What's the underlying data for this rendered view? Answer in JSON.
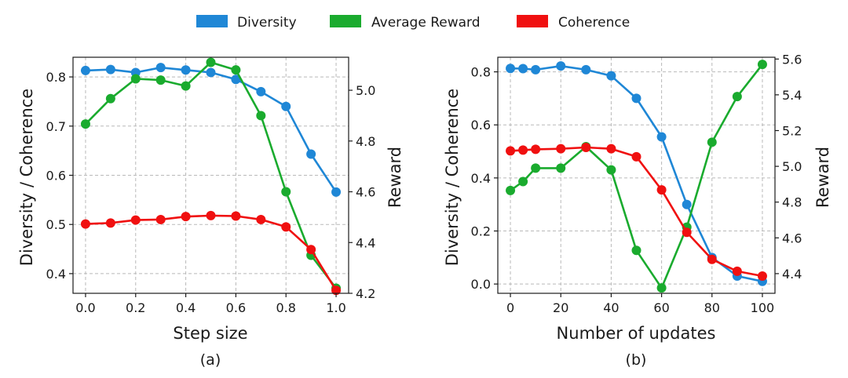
{
  "legend": [
    {
      "label": "Diversity",
      "color": "#1f87d6"
    },
    {
      "label": "Average Reward",
      "color": "#1aab2e"
    },
    {
      "label": "Coherence",
      "color": "#f01010"
    }
  ],
  "chart_data": [
    {
      "type": "line",
      "caption": "(a)",
      "xlabel": "Step size",
      "ylabel_left": "Diversity / Coherence",
      "ylabel_right": "Reward",
      "xlim": [
        -0.05,
        1.05
      ],
      "ylim_left": [
        0.36,
        0.84
      ],
      "ylim_right": [
        4.2,
        5.13
      ],
      "xticks": [
        0.0,
        0.2,
        0.4,
        0.6,
        0.8,
        1.0
      ],
      "xtick_labels": [
        "0.0",
        "0.2",
        "0.4",
        "0.6",
        "0.8",
        "1.0"
      ],
      "yticks_left": [
        0.4,
        0.5,
        0.6,
        0.7,
        0.8
      ],
      "ytick_labels_left": [
        "0.4",
        "0.5",
        "0.6",
        "0.7",
        "0.8"
      ],
      "yticks_right": [
        4.2,
        4.4,
        4.6,
        4.8,
        5.0
      ],
      "ytick_labels_right": [
        "4.2",
        "4.4",
        "4.6",
        "4.8",
        "5.0"
      ],
      "grid": true,
      "x": [
        0.0,
        0.1,
        0.2,
        0.3,
        0.4,
        0.5,
        0.6,
        0.7,
        0.8,
        0.9,
        1.0
      ],
      "series": [
        {
          "name": "Diversity",
          "axis": "left",
          "color": "#1f87d6",
          "values": [
            0.813,
            0.815,
            0.809,
            0.819,
            0.814,
            0.809,
            0.795,
            0.77,
            0.74,
            0.643,
            0.566
          ]
        },
        {
          "name": "Average Reward",
          "axis": "right",
          "color": "#1aab2e",
          "values": [
            4.867,
            4.967,
            5.045,
            5.04,
            5.017,
            5.11,
            5.08,
            4.9,
            4.6,
            4.35,
            4.22
          ]
        },
        {
          "name": "Coherence",
          "axis": "left",
          "color": "#f01010",
          "values": [
            0.501,
            0.503,
            0.509,
            0.51,
            0.516,
            0.518,
            0.517,
            0.51,
            0.495,
            0.449,
            0.366
          ]
        }
      ]
    },
    {
      "type": "line",
      "caption": "(b)",
      "xlabel": "Number of updates",
      "ylabel_left": "Diversity / Coherence",
      "ylabel_right": "Reward",
      "xlim": [
        -5,
        105
      ],
      "ylim_left": [
        -0.035,
        0.855
      ],
      "ylim_right": [
        4.29,
        5.61
      ],
      "xticks": [
        0,
        20,
        40,
        60,
        80,
        100
      ],
      "xtick_labels": [
        "0",
        "20",
        "40",
        "60",
        "80",
        "100"
      ],
      "yticks_left": [
        0.0,
        0.2,
        0.4,
        0.6,
        0.8
      ],
      "ytick_labels_left": [
        "0.0",
        "0.2",
        "0.4",
        "0.6",
        "0.8"
      ],
      "yticks_right": [
        4.4,
        4.6,
        4.8,
        5.0,
        5.2,
        5.4,
        5.6
      ],
      "ytick_labels_right": [
        "4.4",
        "4.6",
        "4.8",
        "5.0",
        "5.2",
        "5.4",
        "5.6"
      ],
      "grid": true,
      "x": [
        0,
        5,
        10,
        20,
        30,
        40,
        50,
        60,
        70,
        80,
        90,
        100
      ],
      "series": [
        {
          "name": "Diversity",
          "axis": "left",
          "color": "#1f87d6",
          "values": [
            0.813,
            0.812,
            0.808,
            0.822,
            0.808,
            0.785,
            0.7,
            0.555,
            0.3,
            0.1,
            0.03,
            0.01
          ]
        },
        {
          "name": "Average Reward",
          "axis": "right",
          "color": "#1aab2e",
          "values": [
            4.865,
            4.915,
            4.99,
            4.99,
            5.11,
            4.98,
            4.53,
            4.32,
            4.66,
            5.135,
            5.39,
            5.57
          ]
        },
        {
          "name": "Coherence",
          "axis": "left",
          "color": "#f01010",
          "values": [
            0.502,
            0.505,
            0.508,
            0.51,
            0.515,
            0.51,
            0.48,
            0.355,
            0.195,
            0.093,
            0.048,
            0.03
          ]
        }
      ]
    }
  ]
}
